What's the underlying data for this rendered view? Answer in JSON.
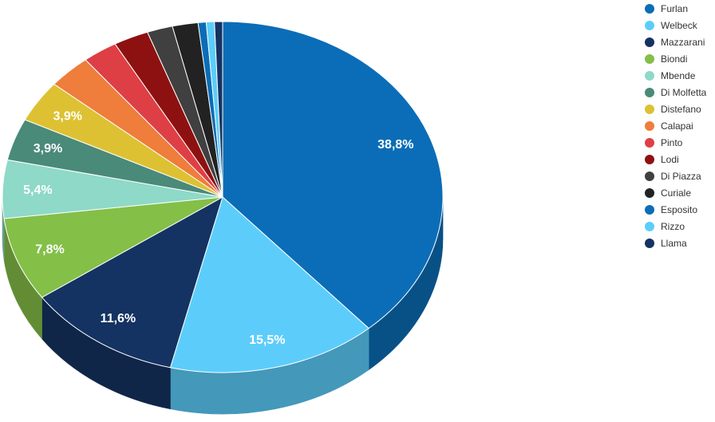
{
  "chart_data": {
    "type": "pie",
    "three_d": true,
    "title": "",
    "legend_position": "right",
    "slices": [
      {
        "name": "Furlan",
        "value": 38.8,
        "label": "38,8%",
        "color": "#0B6DB7"
      },
      {
        "name": "Welbeck",
        "value": 15.5,
        "label": "15,5%",
        "color": "#5CCDFB"
      },
      {
        "name": "Mazzarani",
        "value": 11.6,
        "label": "11,6%",
        "color": "#143362"
      },
      {
        "name": "Biondi",
        "value": 7.8,
        "label": "7,8%",
        "color": "#84BF48"
      },
      {
        "name": "Mbende",
        "value": 5.4,
        "label": "5,4%",
        "color": "#8ED9C8"
      },
      {
        "name": "Di Molfetta",
        "value": 3.9,
        "label": "3,9%",
        "color": "#4A8A78"
      },
      {
        "name": "Distefano",
        "value": 3.9,
        "label": "3,9%",
        "color": "#DEC132"
      },
      {
        "name": "Calapai",
        "value": 3.2,
        "label": "",
        "color": "#EF7D3B"
      },
      {
        "name": "Pinto",
        "value": 2.6,
        "label": "",
        "color": "#DE3F45"
      },
      {
        "name": "Lodi",
        "value": 2.6,
        "label": "",
        "color": "#8E1111"
      },
      {
        "name": "Di Piazza",
        "value": 1.9,
        "label": "",
        "color": "#404040"
      },
      {
        "name": "Curiale",
        "value": 1.9,
        "label": "",
        "color": "#222222"
      },
      {
        "name": "Esposito",
        "value": 0.6,
        "label": "",
        "color": "#0B6DB7"
      },
      {
        "name": "Rizzo",
        "value": 0.6,
        "label": "",
        "color": "#5CCDFB"
      },
      {
        "name": "Llama",
        "value": 0.6,
        "label": "",
        "color": "#143362"
      }
    ]
  }
}
